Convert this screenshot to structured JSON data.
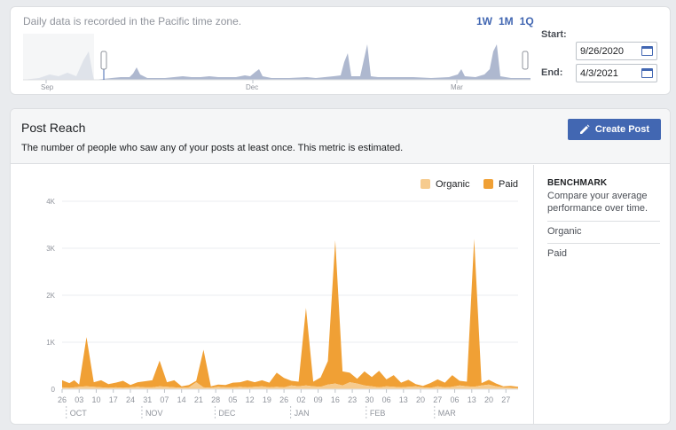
{
  "range_panel": {
    "note": "Daily data is recorded in the Pacific time zone.",
    "buttons": [
      "1W",
      "1M",
      "1Q"
    ],
    "start_label": "Start:",
    "start_value": "9/26/2020",
    "end_label": "End:",
    "end_value": "4/3/2021",
    "month_labels": [
      "Sep",
      "Dec",
      "Mar"
    ]
  },
  "post_reach": {
    "title": "Post Reach",
    "description": "The number of people who saw any of your posts at least once. This metric is estimated.",
    "create_button": "Create Post"
  },
  "benchmark": {
    "title": "BENCHMARK",
    "description": "Compare your average performance over time.",
    "items": [
      "Organic",
      "Paid"
    ]
  },
  "colors": {
    "organic": "#f6cb8e",
    "paid": "#f0a035",
    "accent": "#4267b2"
  },
  "icons": {
    "create_button": "pencil-icon",
    "date_input": "calendar-icon"
  },
  "chart_data": {
    "type": "area",
    "stacked": true,
    "x_unit": "days from 9/26/2020",
    "x_range": [
      0,
      187
    ],
    "ylim": [
      0,
      4000
    ],
    "y_ticks": [
      0,
      1000,
      2000,
      3000,
      4000
    ],
    "y_tick_labels": [
      "0",
      "1K",
      "2K",
      "3K",
      "4K"
    ],
    "x_ticks": [
      0,
      7,
      14,
      21,
      28,
      35,
      42,
      49,
      56,
      63,
      70,
      77,
      84,
      91,
      98,
      105,
      112,
      119,
      126,
      133,
      140,
      147,
      154,
      161,
      168,
      175,
      182
    ],
    "x_tick_labels": [
      "26",
      "03",
      "10",
      "17",
      "24",
      "31",
      "07",
      "14",
      "21",
      "28",
      "05",
      "12",
      "19",
      "26",
      "02",
      "09",
      "16",
      "23",
      "30",
      "06",
      "13",
      "20",
      "27",
      "06",
      "13",
      "20",
      "27"
    ],
    "month_ticks": [
      5,
      36,
      66,
      97,
      128,
      156
    ],
    "month_labels": [
      "OCT",
      "NOV",
      "DEC",
      "JAN",
      "FEB",
      "MAR"
    ],
    "legend": [
      "Organic",
      "Paid"
    ],
    "legend_position": "top-right",
    "grid": true,
    "series": [
      {
        "name": "Organic",
        "x": [
          0,
          3,
          5,
          7,
          10,
          13,
          16,
          19,
          22,
          25,
          28,
          31,
          34,
          37,
          40,
          43,
          46,
          49,
          52,
          55,
          58,
          61,
          64,
          67,
          70,
          73,
          76,
          79,
          82,
          85,
          88,
          91,
          94,
          97,
          100,
          103,
          106,
          109,
          112,
          115,
          118,
          121,
          124,
          127,
          130,
          133,
          136,
          139,
          142,
          145,
          148,
          151,
          154,
          157,
          160,
          163,
          166,
          169,
          172,
          175,
          178,
          181,
          184,
          187
        ],
        "y": [
          40,
          30,
          40,
          50,
          60,
          50,
          40,
          30,
          40,
          30,
          40,
          50,
          40,
          40,
          60,
          50,
          40,
          30,
          40,
          150,
          40,
          30,
          50,
          40,
          40,
          50,
          40,
          50,
          60,
          40,
          50,
          40,
          80,
          60,
          80,
          60,
          50,
          100,
          120,
          80,
          150,
          120,
          80,
          60,
          40,
          60,
          50,
          40,
          50,
          60,
          40,
          30,
          60,
          40,
          50,
          80,
          60,
          50,
          80,
          100,
          60,
          40,
          30,
          20
        ]
      },
      {
        "name": "Paid",
        "x": [
          0,
          3,
          5,
          7,
          10,
          13,
          16,
          19,
          22,
          25,
          28,
          31,
          34,
          37,
          40,
          43,
          46,
          49,
          52,
          55,
          58,
          61,
          64,
          67,
          70,
          73,
          76,
          79,
          82,
          85,
          88,
          91,
          94,
          97,
          100,
          103,
          106,
          109,
          112,
          115,
          118,
          121,
          124,
          127,
          130,
          133,
          136,
          139,
          142,
          145,
          148,
          151,
          154,
          157,
          160,
          163,
          166,
          169,
          172,
          175,
          178,
          181,
          184,
          187
        ],
        "y": [
          150,
          100,
          150,
          50,
          1050,
          100,
          150,
          80,
          100,
          150,
          50,
          100,
          130,
          150,
          550,
          100,
          150,
          30,
          50,
          30,
          800,
          30,
          50,
          50,
          100,
          100,
          150,
          100,
          130,
          100,
          300,
          200,
          100,
          100,
          1650,
          100,
          200,
          500,
          3050,
          300,
          200,
          100,
          300,
          200,
          350,
          150,
          250,
          100,
          150,
          50,
          30,
          100,
          150,
          100,
          250,
          100,
          100,
          3150,
          50,
          100,
          60,
          20,
          40,
          30
        ]
      }
    ]
  }
}
